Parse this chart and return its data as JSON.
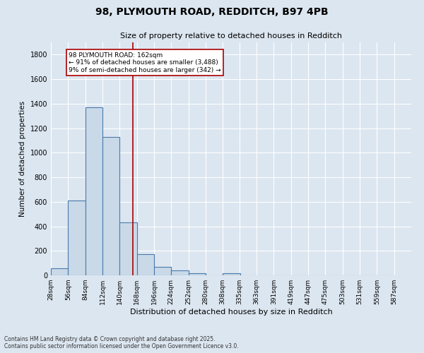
{
  "title1": "98, PLYMOUTH ROAD, REDDITCH, B97 4PB",
  "title2": "Size of property relative to detached houses in Redditch",
  "xlabel": "Distribution of detached houses by size in Redditch",
  "ylabel": "Number of detached properties",
  "bin_labels": [
    "28sqm",
    "56sqm",
    "84sqm",
    "112sqm",
    "140sqm",
    "168sqm",
    "196sqm",
    "224sqm",
    "252sqm",
    "280sqm",
    "308sqm",
    "335sqm",
    "363sqm",
    "391sqm",
    "419sqm",
    "447sqm",
    "475sqm",
    "503sqm",
    "531sqm",
    "559sqm",
    "587sqm"
  ],
  "bin_edges": [
    28,
    56,
    84,
    112,
    140,
    168,
    196,
    224,
    252,
    280,
    308,
    335,
    363,
    391,
    419,
    447,
    475,
    503,
    531,
    559,
    587
  ],
  "bar_heights": [
    60,
    610,
    1370,
    1130,
    430,
    170,
    70,
    40,
    20,
    0,
    20,
    0,
    0,
    0,
    0,
    0,
    0,
    0,
    0,
    0
  ],
  "bar_color": "#c9d9e8",
  "bar_edge_color": "#4a7aab",
  "vline_x": 162,
  "vline_color": "#aa0000",
  "annotation_text": "98 PLYMOUTH ROAD: 162sqm\n← 91% of detached houses are smaller (3,488)\n9% of semi-detached houses are larger (342) →",
  "annotation_box_color": "#ffffff",
  "annotation_box_edge": "#aa0000",
  "ylim": [
    0,
    1900
  ],
  "yticks": [
    0,
    200,
    400,
    600,
    800,
    1000,
    1200,
    1400,
    1600,
    1800
  ],
  "grid_color": "#ffffff",
  "bg_color": "#dce6f0",
  "footer1": "Contains HM Land Registry data © Crown copyright and database right 2025.",
  "footer2": "Contains public sector information licensed under the Open Government Licence v3.0."
}
